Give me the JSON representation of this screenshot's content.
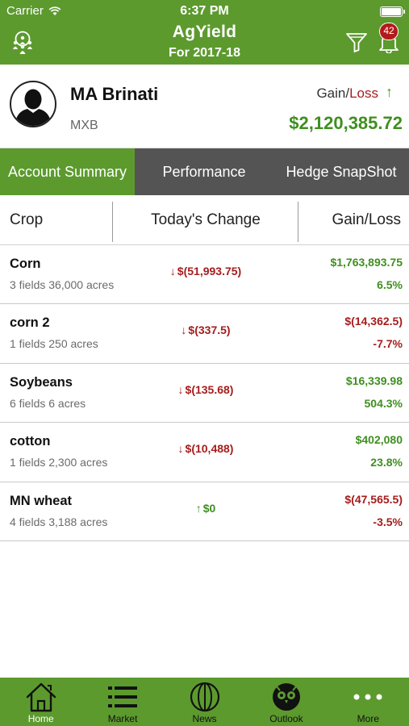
{
  "status_bar": {
    "carrier": "Carrier",
    "time": "6:37 PM"
  },
  "header": {
    "title": "AgYield",
    "subtitle": "For 2017-18",
    "notification_count": "42",
    "accent_color": "#5c9a2e"
  },
  "profile": {
    "name": "MA Brinati",
    "code": "MXB",
    "gain_label": "Gain/",
    "loss_label": "Loss",
    "trend_arrow": "↑",
    "total": "$2,120,385.72"
  },
  "tabs": [
    {
      "label": "Account Summary",
      "active": true
    },
    {
      "label": "Performance",
      "active": false
    },
    {
      "label": "Hedge SnapShot",
      "active": false
    }
  ],
  "columns": {
    "crop": "Crop",
    "change": "Today's Change",
    "gain_loss": "Gain/Loss"
  },
  "rows": [
    {
      "name": "Corn",
      "meta": "3 fields 36,000 acres",
      "change_arrow": "↓",
      "change": "$(51,993.75)",
      "change_dir": "neg",
      "gl_amount": "$1,763,893.75",
      "gl_pct": "6.5%",
      "gl_dir": "pos"
    },
    {
      "name": "corn 2",
      "meta": "1 fields 250 acres",
      "change_arrow": "↓",
      "change": "$(337.5)",
      "change_dir": "neg",
      "gl_amount": "$(14,362.5)",
      "gl_pct": "-7.7%",
      "gl_dir": "neg"
    },
    {
      "name": "Soybeans",
      "meta": "6 fields 6 acres",
      "change_arrow": "↓",
      "change": "$(135.68)",
      "change_dir": "neg",
      "gl_amount": "$16,339.98",
      "gl_pct": "504.3%",
      "gl_dir": "pos"
    },
    {
      "name": "cotton",
      "meta": "1 fields 2,300 acres",
      "change_arrow": "↓",
      "change": "$(10,488)",
      "change_dir": "neg",
      "gl_amount": "$402,080",
      "gl_pct": "23.8%",
      "gl_dir": "pos"
    },
    {
      "name": "MN wheat",
      "meta": "4 fields 3,188 acres",
      "change_arrow": "↑",
      "change": "$0",
      "change_dir": "pos",
      "gl_amount": "$(47,565.5)",
      "gl_pct": "-3.5%",
      "gl_dir": "neg"
    }
  ],
  "bottom_nav": [
    {
      "label": "Home",
      "icon": "home-icon",
      "active": true
    },
    {
      "label": "Market",
      "icon": "list-icon",
      "active": false
    },
    {
      "label": "News",
      "icon": "globe-icon",
      "active": false
    },
    {
      "label": "Outlook",
      "icon": "owl-icon",
      "active": false
    },
    {
      "label": "More",
      "icon": "more-icon",
      "active": false
    }
  ]
}
